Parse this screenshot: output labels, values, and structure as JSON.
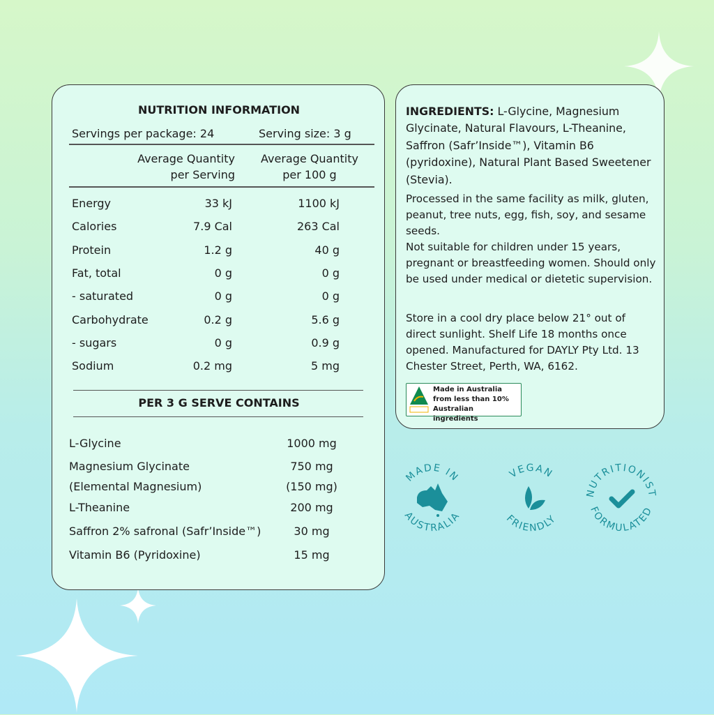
{
  "nutrition": {
    "title": "NUTRITION INFORMATION",
    "servings_per_package": "Servings per package: 24",
    "serving_size": "Serving size: 3 g",
    "col1": [
      "Average Quantity",
      "per Serving"
    ],
    "col2": [
      "Average Quantity",
      "per 100 g"
    ],
    "rows": [
      {
        "name": "Energy",
        "serving": "33 kJ",
        "per100": "1100 kJ"
      },
      {
        "name": "Calories",
        "serving": "7.9 Cal",
        "per100": "263 Cal"
      },
      {
        "name": "Protein",
        "serving": "1.2 g",
        "per100": "40 g"
      },
      {
        "name": "Fat, total",
        "serving": "0 g",
        "per100": "0 g"
      },
      {
        "name": "- saturated",
        "serving": "0 g",
        "per100": "0 g"
      },
      {
        "name": "Carbohydrate",
        "serving": "0.2 g",
        "per100": "5.6 g"
      },
      {
        "name": " - sugars",
        "serving": "0 g",
        "per100": "0.9 g"
      },
      {
        "name": "Sodium",
        "serving": "0.2 mg",
        "per100": "5 mg"
      }
    ],
    "serve_title": "PER 3 G SERVE CONTAINS",
    "serve_rows": [
      {
        "name": "L-Glycine",
        "amount": "1000 mg"
      },
      {
        "name": "Magnesium Glycinate",
        "amount": "750 mg"
      },
      {
        "name": "(Elemental Magnesium)",
        "amount": "(150 mg)"
      },
      {
        "name": "L-Theanine",
        "amount": "200 mg"
      },
      {
        "name": "Saffron 2% safronal (Safr’Inside™)",
        "amount": "30 mg"
      },
      {
        "name": "Vitamin B6 (Pyridoxine)",
        "amount": "15 mg"
      }
    ]
  },
  "ingredients": {
    "label": "INGREDIENTS:",
    "text": " L-Glycine, Magnesium Glycinate, Natural Flavours, L-Theanine, Saffron (Safr’Inside™), Vitamin B6 (pyridoxine), Natural Plant Based Sweetener (Stevia).",
    "allergen": "Processed in the same facility as milk, gluten, peanut, tree nuts, egg, fish, soy, and sesame seeds.",
    "warning": "Not suitable for children under 15 years, pregnant or breastfeeding women. Should only be used under medical or dietetic supervision.",
    "storage": "Store in a cool dry place below 21° out of direct sunlight. Shelf Life 18 months once opened.  Manufactured for DAYLY Pty Ltd. 13 Chester Street, Perth, WA, 6162.",
    "origin_label": [
      "Made in Australia",
      "from less than 10%",
      "Australian ingredients"
    ]
  },
  "badges": [
    {
      "top": "MADE IN",
      "bottom": "AUSTRALIA",
      "icon": "australia-map-icon"
    },
    {
      "top": "VEGAN",
      "bottom": "FRIENDLY",
      "icon": "leaf-icon"
    },
    {
      "top": "NUTRITIONIST",
      "bottom": "FORMULATED",
      "icon": "checkmark-icon"
    }
  ],
  "colors": {
    "badge": "#1b8f9a",
    "card": "#defbf0",
    "origin_green": "#0f8a4f"
  }
}
